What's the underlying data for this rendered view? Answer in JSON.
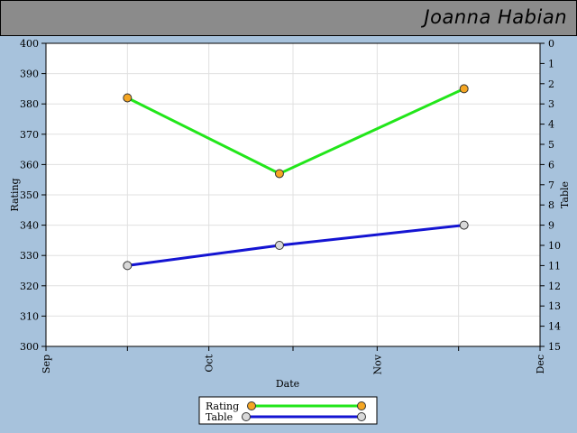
{
  "header": {
    "player_name": "Joanna Habian"
  },
  "chart_data": {
    "type": "line",
    "title": "",
    "xlabel": "Date",
    "ylabel_left": "Rating",
    "ylabel_right": "Table",
    "x_ticks": [
      "Sep",
      "Oct",
      "Nov",
      "Dec"
    ],
    "x_range": [
      "2009-09-01",
      "2009-12-01"
    ],
    "left_axis": {
      "min": 300,
      "max": 400,
      "step": 10
    },
    "right_axis": {
      "min": 0,
      "max": 15,
      "step": 1,
      "inverted": true
    },
    "grid": true,
    "legend_position": "bottom-center",
    "series": [
      {
        "name": "Rating",
        "axis": "left",
        "color": "#22e61a",
        "marker_color": "#f5a623",
        "points": [
          {
            "x": "2009-09-16",
            "y": 382
          },
          {
            "x": "2009-10-14",
            "y": 357
          },
          {
            "x": "2009-11-17",
            "y": 385
          }
        ]
      },
      {
        "name": "Table",
        "axis": "right",
        "color": "#1414d2",
        "marker_color": "#d9d9d9",
        "points": [
          {
            "x": "2009-09-16",
            "y": 11
          },
          {
            "x": "2009-10-14",
            "y": 10
          },
          {
            "x": "2009-11-17",
            "y": 9
          }
        ]
      }
    ]
  }
}
